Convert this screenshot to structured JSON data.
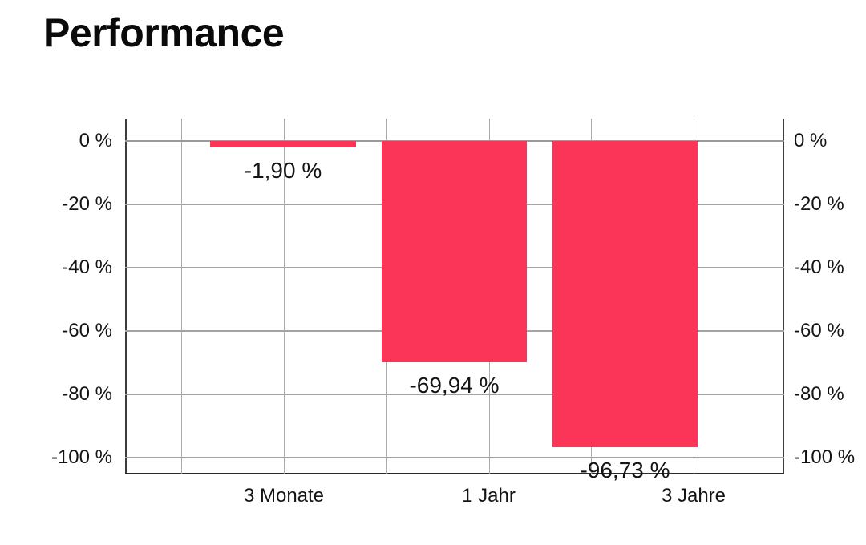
{
  "page": {
    "title": "Performance"
  },
  "chart_data": {
    "type": "bar",
    "title": "Performance",
    "categories": [
      "3 Monate",
      "1 Jahr",
      "3 Jahre"
    ],
    "values": [
      -1.9,
      -69.94,
      -96.73
    ],
    "value_labels": [
      "-1,90 %",
      "-69,94 %",
      "-96,73 %"
    ],
    "y_tick_values": [
      0,
      -20,
      -40,
      -60,
      -80,
      -100
    ],
    "y_tick_labels": [
      "0 %",
      "-20 %",
      "-40 %",
      "-60 %",
      "-80 %",
      "-100 %"
    ],
    "ylim": [
      7,
      -105.5
    ],
    "grid": true,
    "legend": "none",
    "y_axis_labels_position": "left-and-right",
    "bar_color": "#FB3557"
  },
  "colors": {
    "bar": "#FB3557",
    "gridline": "#A8A8A8",
    "axis_line": "#3C3C3C",
    "text": "#141414",
    "background": "#FFFFFF"
  }
}
